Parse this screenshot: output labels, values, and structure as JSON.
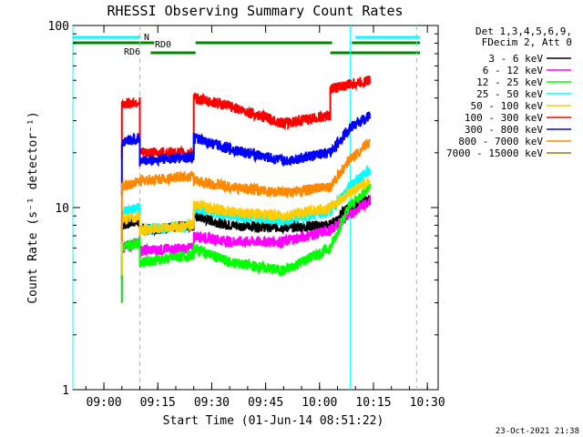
{
  "chart_data": {
    "type": "line",
    "title": "RHESSI Observing Summary Count Rates",
    "xlabel": "Start Time (01-Jun-14 08:51:22)",
    "ylabel": "Count Rate (s⁻¹ detector⁻¹)",
    "yscale": "log",
    "ylim": [
      1,
      100
    ],
    "xlim": [
      "08:51:22",
      "10:33:00"
    ],
    "x_ticks": [
      "09:00",
      "09:15",
      "09:30",
      "09:45",
      "10:00",
      "10:15",
      "10:30"
    ],
    "y_ticks": [
      "1",
      "10",
      "100"
    ],
    "legend_title": [
      "Det 1,3,4,5,6,9,",
      "FDecim 2, Att 0"
    ],
    "legend_position": "right",
    "footer": "23-Oct-2021 21:38",
    "flags": [
      {
        "label": "N",
        "color": "#00ffff",
        "segments": [
          [
            "08:51:22",
            "09:10:00"
          ],
          [
            "10:10:00",
            "10:31:00"
          ]
        ]
      },
      {
        "label": "RD0",
        "color": "#008800",
        "segments": [
          [
            "08:51:22",
            "09:14:00"
          ],
          [
            "09:25:30",
            "10:03:30"
          ],
          [
            "10:09:00",
            "10:31:00"
          ]
        ]
      },
      {
        "label": "RD6",
        "color": "#008800",
        "segments": [
          [
            "09:13:00",
            "09:25:30"
          ],
          [
            "10:03:00",
            "10:31:00"
          ]
        ]
      }
    ],
    "markers": [
      {
        "time": "08:51:22",
        "style": "solid",
        "color": "#00ffff"
      },
      {
        "time": "09:10:00",
        "style": "dashed",
        "color": "#00ffff"
      },
      {
        "time": "10:08:30",
        "style": "solid",
        "color": "#00ffff"
      },
      {
        "time": "10:27:00",
        "style": "dashed",
        "color": "#00ffff"
      }
    ],
    "series": [
      {
        "name": "3 - 6 keV",
        "color": "#000000",
        "x": [
          "09:05",
          "09:10",
          "09:10",
          "09:25",
          "09:25",
          "09:35",
          "09:50",
          "10:03",
          "10:08",
          "10:14"
        ],
        "y": [
          8,
          8.5,
          7.5,
          8,
          9,
          8,
          7.8,
          8,
          10,
          11
        ]
      },
      {
        "name": "6 - 12 keV",
        "color": "#ff00ff",
        "x": [
          "09:05",
          "09:10",
          "09:10",
          "09:25",
          "09:25",
          "09:35",
          "09:50",
          "10:03",
          "10:08",
          "10:14"
        ],
        "y": [
          6,
          6.5,
          5.8,
          6,
          7,
          6.5,
          6.5,
          7.5,
          9,
          11
        ]
      },
      {
        "name": "12 - 25 keV",
        "color": "#00ff00",
        "x": [
          "09:05",
          "09:10",
          "09:10",
          "09:25",
          "09:25",
          "09:35",
          "09:50",
          "10:03",
          "10:08",
          "10:14"
        ],
        "y": [
          6,
          6.5,
          5,
          5.5,
          6,
          5,
          4.5,
          6,
          10,
          13
        ]
      },
      {
        "name": "25 - 50 keV",
        "color": "#00ffff",
        "x": [
          "09:05",
          "09:10",
          "09:10",
          "09:25",
          "09:25",
          "09:35",
          "09:50",
          "10:03",
          "10:08",
          "10:14"
        ],
        "y": [
          9.5,
          10,
          7.5,
          8,
          10,
          9,
          8.5,
          9.5,
          13,
          16
        ]
      },
      {
        "name": "50 - 100 keV",
        "color": "#ffcc00",
        "x": [
          "09:05",
          "09:10",
          "09:10",
          "09:25",
          "09:25",
          "09:35",
          "09:50",
          "10:03",
          "10:08",
          "10:14"
        ],
        "y": [
          8.5,
          9,
          7.5,
          8,
          10.5,
          9.5,
          9,
          10,
          12,
          14
        ]
      },
      {
        "name": "100 - 300 keV",
        "color": "#ff0000",
        "x": [
          "09:05",
          "09:10",
          "09:10",
          "09:25",
          "09:25",
          "09:35",
          "09:50",
          "10:03",
          "10:03",
          "10:14"
        ],
        "y": [
          37,
          38,
          20,
          20,
          40,
          36,
          29,
          32,
          45,
          50
        ]
      },
      {
        "name": "300 - 800 keV",
        "color": "#0000ff",
        "x": [
          "09:05",
          "09:10",
          "09:10",
          "09:25",
          "09:25",
          "09:35",
          "09:50",
          "10:03",
          "10:08",
          "10:14"
        ],
        "y": [
          23,
          24,
          18,
          19,
          24,
          21,
          18,
          20,
          27,
          32
        ]
      },
      {
        "name": "800 - 7000 keV",
        "color": "#ff8800",
        "x": [
          "09:05",
          "09:10",
          "09:10",
          "09:25",
          "09:25",
          "09:35",
          "09:50",
          "10:03",
          "10:08",
          "10:14"
        ],
        "y": [
          13,
          14,
          14,
          15,
          14,
          13,
          12,
          13,
          18,
          23
        ]
      },
      {
        "name": "7000 - 15000 keV",
        "color": "#888800",
        "x": [
          "09:05",
          "10:14"
        ],
        "y": [
          null,
          null
        ]
      }
    ]
  }
}
